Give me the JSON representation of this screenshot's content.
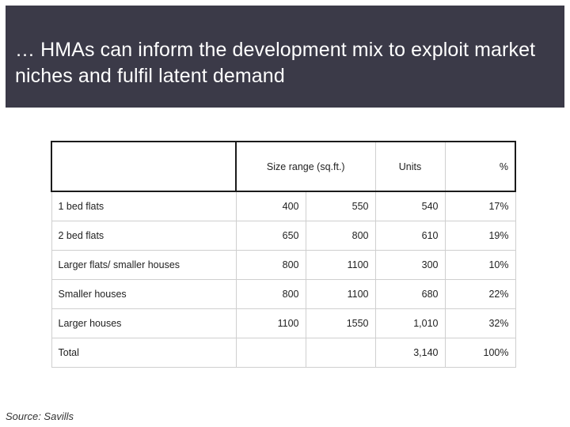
{
  "title": "… HMAs can inform the development mix to exploit market niches and fulfil latent demand",
  "table": {
    "headers": {
      "label": "",
      "size_range": "Size range (sq.ft.)",
      "units": "Units",
      "percent": "%"
    },
    "rows": [
      {
        "type": "1 bed flats",
        "size_min": "400",
        "size_max": "550",
        "units": "540",
        "percent": "17%"
      },
      {
        "type": "2 bed flats",
        "size_min": "650",
        "size_max": "800",
        "units": "610",
        "percent": "19%"
      },
      {
        "type": "Larger flats/ smaller houses",
        "size_min": "800",
        "size_max": "1100",
        "units": "300",
        "percent": "10%"
      },
      {
        "type": "Smaller houses",
        "size_min": "800",
        "size_max": "1100",
        "units": "680",
        "percent": "22%"
      },
      {
        "type": "Larger houses",
        "size_min": "1100",
        "size_max": "1550",
        "units": "1,010",
        "percent": "32%"
      },
      {
        "type": "Total",
        "size_min": "",
        "size_max": "",
        "units": "3,140",
        "percent": "100%"
      }
    ]
  },
  "source": "Source: Savills"
}
